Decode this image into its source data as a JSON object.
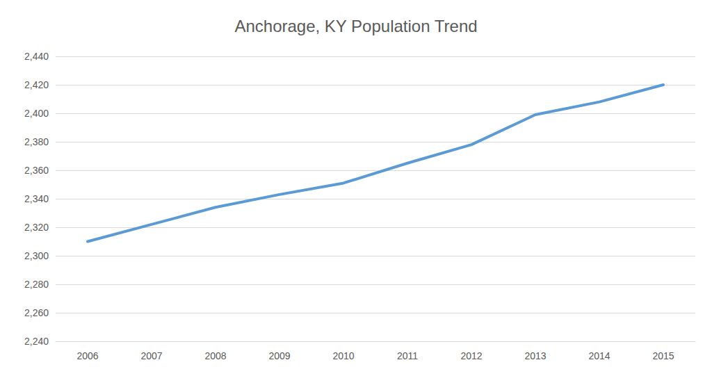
{
  "chart_data": {
    "type": "line",
    "title": "Anchorage, KY Population Trend",
    "categories": [
      "2006",
      "2007",
      "2008",
      "2009",
      "2010",
      "2011",
      "2012",
      "2013",
      "2014",
      "2015"
    ],
    "values": [
      2310,
      2322,
      2334,
      2343,
      2351,
      2365,
      2378,
      2399,
      2408,
      2420
    ],
    "color": "#5b9bd5",
    "ylim": [
      2240,
      2440
    ],
    "yticks": [
      {
        "value": 2240,
        "label": "2,240"
      },
      {
        "value": 2260,
        "label": "2,260"
      },
      {
        "value": 2280,
        "label": "2,280"
      },
      {
        "value": 2300,
        "label": "2,300"
      },
      {
        "value": 2320,
        "label": "2,320"
      },
      {
        "value": 2340,
        "label": "2,340"
      },
      {
        "value": 2360,
        "label": "2,360"
      },
      {
        "value": 2380,
        "label": "2,380"
      },
      {
        "value": 2400,
        "label": "2,400"
      },
      {
        "value": 2420,
        "label": "2,420"
      },
      {
        "value": 2440,
        "label": "2,440"
      }
    ],
    "grid": true
  }
}
